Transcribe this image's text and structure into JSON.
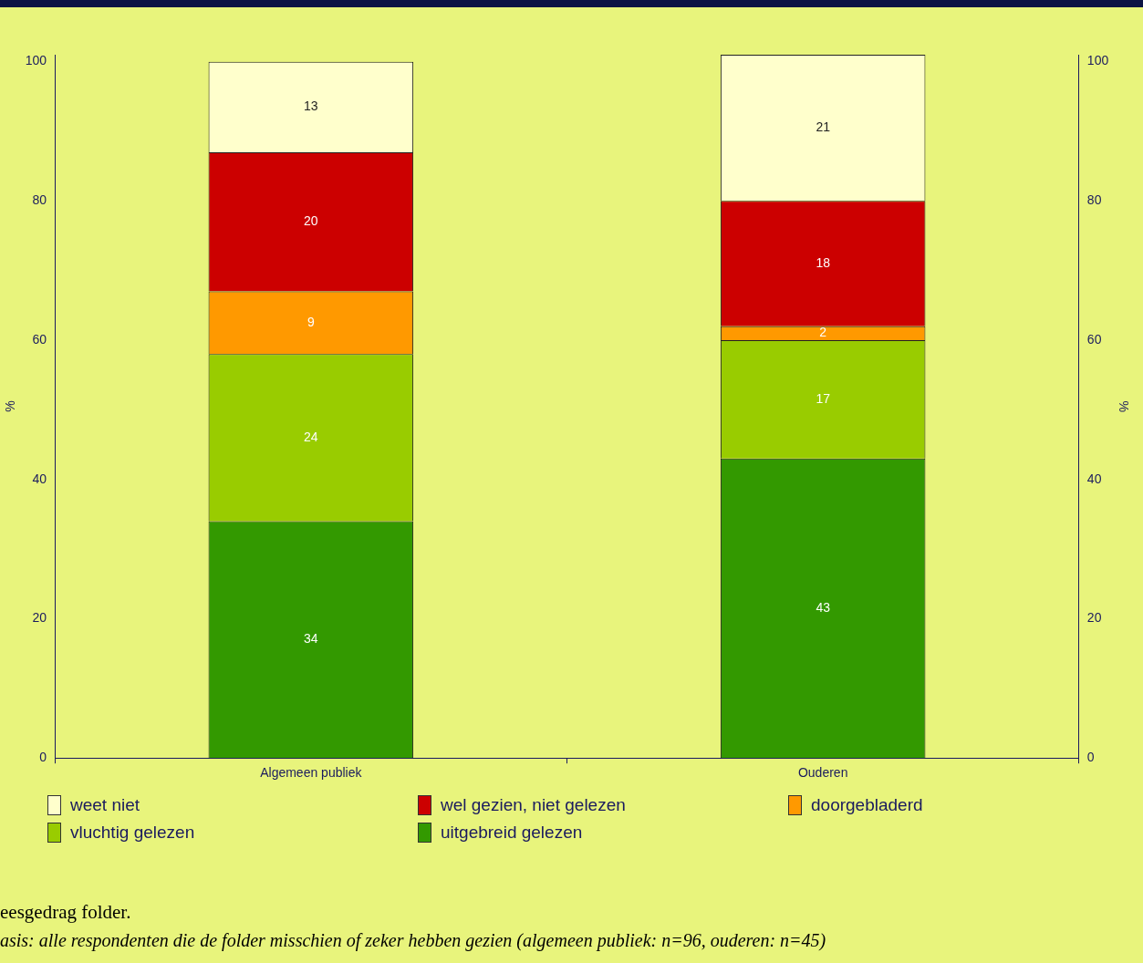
{
  "chart_data": {
    "type": "bar",
    "stacked": true,
    "categories": [
      "Algemeen publiek",
      "Ouderen"
    ],
    "series": [
      {
        "name": "uitgebreid gelezen",
        "color": "#339900",
        "values": [
          34,
          43
        ]
      },
      {
        "name": "vluchtig gelezen",
        "color": "#99cc00",
        "values": [
          24,
          17
        ]
      },
      {
        "name": "doorgebladerd",
        "color": "#ff9900",
        "values": [
          9,
          2
        ]
      },
      {
        "name": "wel gezien, niet gelezen",
        "color": "#cc0000",
        "values": [
          20,
          18
        ]
      },
      {
        "name": "weet niet",
        "color": "#ffffcc",
        "values": [
          13,
          21
        ]
      }
    ],
    "ylabel": "%",
    "y2label": "%",
    "ylim": [
      0,
      101
    ],
    "yticks": [
      0,
      20,
      40,
      60,
      80,
      100
    ],
    "y2lim": [
      0,
      101
    ],
    "y2ticks": [
      0,
      20,
      40,
      60,
      80,
      100
    ],
    "data_labels": true,
    "grid": false,
    "legend": "bottom",
    "annotations": [
      "eesgedrag folder.",
      "asis: alle respondenten die de folder misschien of zeker hebben gezien (algemeen publiek: n=96, ouderen: n=45)"
    ]
  }
}
